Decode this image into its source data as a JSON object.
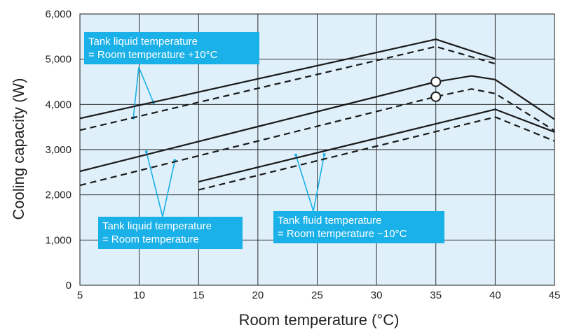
{
  "chart_data": {
    "type": "line",
    "title": "",
    "xlabel": "Room temperature (°C)",
    "ylabel": "Cooling capacity (W)",
    "xlim": [
      5,
      45
    ],
    "ylim": [
      0,
      6000
    ],
    "x_ticks": [
      "5",
      "10",
      "15",
      "20",
      "25",
      "30",
      "35",
      "40",
      "45"
    ],
    "y_ticks": [
      "0",
      "1,000",
      "2,000",
      "3,000",
      "4,000",
      "5,000",
      "6,000"
    ],
    "grid": true,
    "background_color": "#dff0fa",
    "line_color": "#1a1a1a",
    "callout_color": "#1ab0e8",
    "series": [
      {
        "group": "Tank liquid temperature = Room temperature +10°C",
        "style": "solid",
        "x": [
          5,
          35,
          40
        ],
        "y": [
          3690,
          5440,
          5010
        ]
      },
      {
        "group": "Tank liquid temperature = Room temperature +10°C",
        "style": "dashed",
        "x": [
          5,
          35,
          40
        ],
        "y": [
          3430,
          5280,
          4900
        ]
      },
      {
        "group": "Tank liquid temperature = Room temperature",
        "style": "solid",
        "x": [
          5,
          35,
          38,
          40,
          45
        ],
        "y": [
          2520,
          4500,
          4630,
          4550,
          3670
        ]
      },
      {
        "group": "Tank liquid temperature = Room temperature",
        "style": "dashed",
        "x": [
          5,
          35,
          38,
          40,
          45
        ],
        "y": [
          2210,
          4170,
          4340,
          4240,
          3420
        ]
      },
      {
        "group": "Tank fluid temperature = Room temperature −10°C",
        "style": "solid",
        "x": [
          15,
          40,
          45
        ],
        "y": [
          2290,
          3890,
          3390
        ]
      },
      {
        "group": "Tank fluid temperature = Room temperature −10°C",
        "style": "dashed",
        "x": [
          15,
          40,
          45
        ],
        "y": [
          2110,
          3720,
          3190
        ]
      }
    ],
    "markers": [
      {
        "x": 35,
        "y": 4500,
        "shape": "open-circle"
      },
      {
        "x": 35,
        "y": 4170,
        "shape": "open-circle"
      }
    ],
    "annotations": [
      {
        "lines": [
          "Tank liquid temperature",
          "= Room temperature +10°C"
        ],
        "pointers": [
          [
            9.5,
            3700
          ],
          [
            11.2,
            4040
          ]
        ]
      },
      {
        "lines": [
          "Tank liquid temperature",
          "= Room temperature"
        ],
        "pointers": [
          [
            10.6,
            2950
          ],
          [
            13,
            2760
          ]
        ]
      },
      {
        "lines": [
          "Tank fluid temperature",
          "= Room temperature −10°C"
        ],
        "pointers": [
          [
            23.2,
            2880
          ],
          [
            25.6,
            2890
          ]
        ]
      }
    ]
  }
}
